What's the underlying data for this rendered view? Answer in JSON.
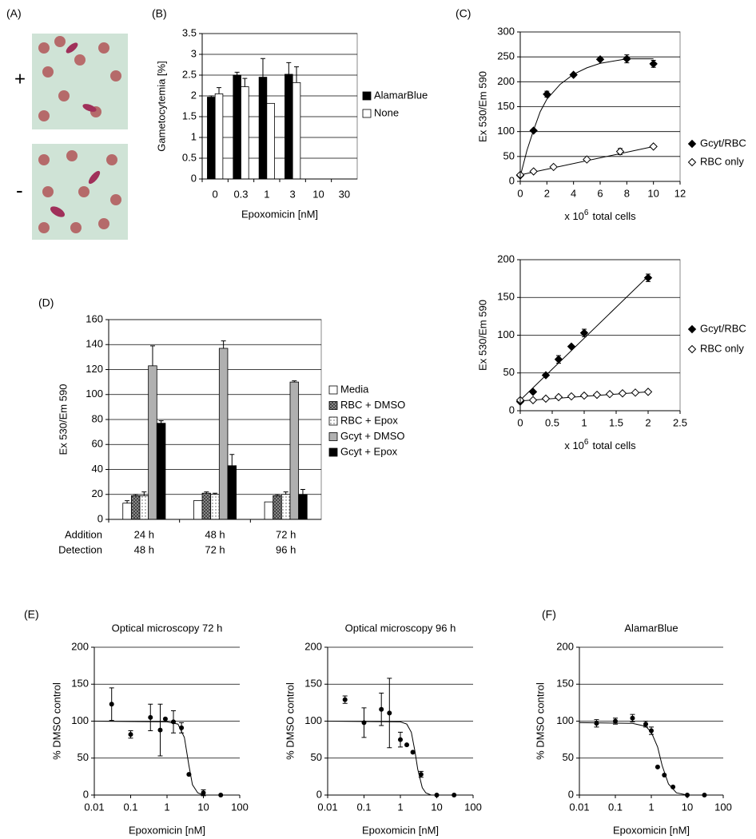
{
  "panel_a": {
    "label": "(A)",
    "plus": "+",
    "minus": "-"
  },
  "chart_data": [
    {
      "type": "bar",
      "panel": "(B)",
      "ylabel": "Gametocytemia [%]",
      "xlabel": "Epoxomicin [nM]",
      "categories": [
        "0",
        "0.3",
        "1",
        "3",
        "10",
        "30"
      ],
      "series": [
        {
          "name": "AlamarBlue",
          "color": "#000000",
          "values": [
            1.97,
            2.5,
            2.45,
            2.52,
            null,
            null
          ],
          "errors": [
            0.03,
            0.07,
            0.45,
            0.28,
            null,
            null
          ]
        },
        {
          "name": "None",
          "color": "#ffffff",
          "values": [
            2.05,
            2.22,
            1.82,
            2.32,
            null,
            null
          ],
          "errors": [
            0.15,
            0.2,
            null,
            0.38,
            null,
            null
          ]
        }
      ],
      "ylim": [
        0,
        3.5
      ],
      "yticks": [
        0,
        0.5,
        1,
        1.5,
        2,
        2.5,
        3,
        3.5
      ],
      "grid": true,
      "frame": true,
      "legend": "right"
    },
    {
      "type": "scatter",
      "panel": "(C)",
      "ylabel": "Ex 530/Em 590",
      "xlabel": [
        "x 10",
        "6",
        "total cells"
      ],
      "xlim": [
        0,
        12
      ],
      "xticks": [
        0,
        2,
        4,
        6,
        8,
        10,
        12
      ],
      "ylim": [
        0,
        300
      ],
      "yticks": [
        0,
        50,
        100,
        150,
        200,
        250,
        300
      ],
      "series": [
        {
          "name": "Gcyt/RBC",
          "color": "#000000",
          "marker": "diamond",
          "x": [
            0,
            1,
            2,
            4,
            6,
            8,
            10
          ],
          "values": [
            12,
            102,
            175,
            214,
            245,
            246,
            236
          ],
          "errors": [
            null,
            null,
            6,
            null,
            null,
            8,
            7
          ]
        },
        {
          "name": "RBC only",
          "color": "#ffffff",
          "marker": "diamond",
          "x": [
            0,
            1,
            2.5,
            5,
            7.5,
            10
          ],
          "values": [
            13,
            20,
            29,
            44,
            60,
            70
          ],
          "errors": [
            null,
            null,
            null,
            null,
            6,
            null
          ]
        }
      ],
      "curves": [
        {
          "x": [
            0,
            0.5,
            1,
            1.5,
            2,
            3,
            4,
            5,
            6,
            8,
            10
          ],
          "values": [
            10,
            62,
            103,
            140,
            165,
            195,
            215,
            228,
            237,
            246,
            246
          ]
        },
        {
          "x": [
            0,
            10
          ],
          "values": [
            13,
            70
          ]
        }
      ],
      "grid": true,
      "frame": true,
      "legend": "right"
    },
    {
      "type": "scatter",
      "ylabel": "Ex 530/Em 590",
      "xlabel": [
        "x 10",
        "6",
        "total cells"
      ],
      "xlim": [
        0,
        2.5
      ],
      "xticks": [
        0,
        0.5,
        1,
        1.5,
        2,
        2.5
      ],
      "ylim": [
        0,
        200
      ],
      "yticks": [
        0,
        50,
        100,
        150,
        200
      ],
      "series": [
        {
          "name": "Gcyt/RBC",
          "color": "#000000",
          "marker": "diamond",
          "x": [
            0,
            0.2,
            0.4,
            0.6,
            0.8,
            1,
            2
          ],
          "values": [
            12,
            25,
            47,
            68,
            85,
            103,
            176
          ],
          "errors": [
            null,
            null,
            null,
            5,
            null,
            5,
            5
          ]
        },
        {
          "name": "RBC only",
          "color": "#ffffff",
          "marker": "diamond",
          "x": [
            0,
            0.2,
            0.4,
            0.6,
            0.8,
            1,
            1.2,
            1.4,
            1.6,
            1.8,
            2
          ],
          "values": [
            14,
            14,
            16,
            18,
            19,
            20,
            21,
            22,
            23,
            24,
            25
          ],
          "errors": [
            null,
            null,
            null,
            null,
            null,
            null,
            null,
            null,
            null,
            null,
            null
          ]
        }
      ],
      "curves": [
        {
          "x": [
            0,
            2
          ],
          "values": [
            14,
            178
          ]
        },
        {
          "x": [
            0,
            2
          ],
          "values": [
            13,
            25
          ]
        }
      ],
      "grid": true,
      "frame": true,
      "legend": "right"
    },
    {
      "type": "bar",
      "panel": "(D)",
      "ylabel": "Ex 530/Em 590",
      "row_labels": [
        "Addition",
        "Detection"
      ],
      "categories": [
        "24 h",
        "48 h",
        "72 h"
      ],
      "categories2": [
        "48 h",
        "72 h",
        "96 h"
      ],
      "series": [
        {
          "name": "Media",
          "color": "#ffffff",
          "values": [
            13,
            15,
            14
          ],
          "errors": [
            2,
            null,
            null
          ]
        },
        {
          "name": "RBC + DMSO",
          "color": "#707070",
          "pattern": "hatch",
          "values": [
            19,
            21,
            19
          ],
          "errors": [
            1,
            1,
            1
          ]
        },
        {
          "name": "RBC + Epox",
          "color": "#f0f0f0",
          "pattern": "dots",
          "values": [
            19,
            20,
            20
          ],
          "errors": [
            3,
            1,
            2
          ]
        },
        {
          "name": "Gcyt + DMSO",
          "color": "#b0b0b0",
          "values": [
            123,
            137,
            110
          ],
          "errors": [
            16,
            6,
            1
          ]
        },
        {
          "name": "Gcyt + Epox",
          "color": "#000000",
          "values": [
            77,
            43,
            20
          ],
          "errors": [
            2,
            9,
            4
          ]
        }
      ],
      "ylim": [
        0,
        160
      ],
      "yticks": [
        0,
        20,
        40,
        60,
        80,
        100,
        120,
        140,
        160
      ],
      "grid": true,
      "frame": true,
      "legend": "right"
    },
    {
      "type": "scatter",
      "panel": "(E)",
      "title": "Optical microscopy 72 h",
      "ylabel": "% DMSO control",
      "xlabel": "Epoxomicin [nM]",
      "xscale": "log",
      "xlim": [
        0.01,
        100
      ],
      "xticks": [
        0.01,
        0.1,
        1,
        10,
        100
      ],
      "ylim": [
        0,
        200
      ],
      "yticks": [
        0,
        50,
        100,
        150,
        200
      ],
      "series": [
        {
          "color": "#000000",
          "marker": "circle",
          "x": [
            0.03,
            0.1,
            0.35,
            0.65,
            0.9,
            1.5,
            2.5,
            4,
            10,
            30
          ],
          "values": [
            123,
            82,
            105,
            88,
            103,
            99,
            91,
            28,
            3,
            0
          ],
          "errors": [
            22,
            5,
            18,
            35,
            null,
            15,
            7,
            null,
            4,
            null
          ]
        }
      ],
      "curves": [
        {
          "x": [
            0.01,
            1,
            2,
            3,
            4,
            5,
            7,
            10,
            100
          ],
          "values": [
            100,
            99,
            96,
            78,
            40,
            14,
            3,
            0,
            0
          ]
        }
      ],
      "grid": true
    },
    {
      "type": "scatter",
      "title": "Optical microscopy 96 h",
      "ylabel": "% DMSO control",
      "xlabel": "Epoxomicin [nM]",
      "xscale": "log",
      "xlim": [
        0.01,
        100
      ],
      "xticks": [
        0.01,
        0.1,
        1,
        10,
        100
      ],
      "ylim": [
        0,
        200
      ],
      "yticks": [
        0,
        50,
        100,
        150,
        200
      ],
      "series": [
        {
          "color": "#000000",
          "marker": "circle",
          "x": [
            0.03,
            0.1,
            0.3,
            0.5,
            1,
            1.5,
            2.2,
            3.7,
            10,
            30
          ],
          "values": [
            129,
            98,
            116,
            111,
            75,
            68,
            58,
            28,
            0,
            0
          ],
          "errors": [
            5,
            20,
            22,
            47,
            10,
            null,
            null,
            4,
            null,
            null
          ]
        }
      ],
      "curves": [
        {
          "x": [
            0.01,
            1,
            1.5,
            2,
            2.5,
            3,
            4,
            5,
            7,
            100
          ],
          "values": [
            100,
            99,
            96,
            85,
            60,
            35,
            10,
            3,
            0,
            0
          ]
        }
      ],
      "grid": true
    },
    {
      "type": "scatter",
      "panel": "(F)",
      "title": "AlamarBlue",
      "ylabel": "% DMSO control",
      "xlabel": "Epoxomicin [nM]",
      "xscale": "log",
      "xlim": [
        0.01,
        100
      ],
      "xticks": [
        0.01,
        0.1,
        1,
        10,
        100
      ],
      "ylim": [
        0,
        200
      ],
      "yticks": [
        0,
        50,
        100,
        150,
        200
      ],
      "series": [
        {
          "color": "#000000",
          "marker": "circle",
          "x": [
            0.03,
            0.1,
            0.3,
            0.7,
            1,
            1.5,
            2.3,
            4,
            10,
            30
          ],
          "values": [
            97,
            100,
            104,
            96,
            87,
            38,
            27,
            11,
            0,
            0
          ],
          "errors": [
            5,
            4,
            5,
            4,
            5,
            null,
            null,
            null,
            null,
            null
          ]
        }
      ],
      "curves": [
        {
          "x": [
            0.01,
            0.3,
            0.7,
            1,
            1.5,
            2,
            3,
            5,
            10,
            100
          ],
          "values": [
            98,
            97,
            93,
            85,
            65,
            40,
            15,
            3,
            0,
            0
          ]
        }
      ],
      "grid": true
    }
  ]
}
